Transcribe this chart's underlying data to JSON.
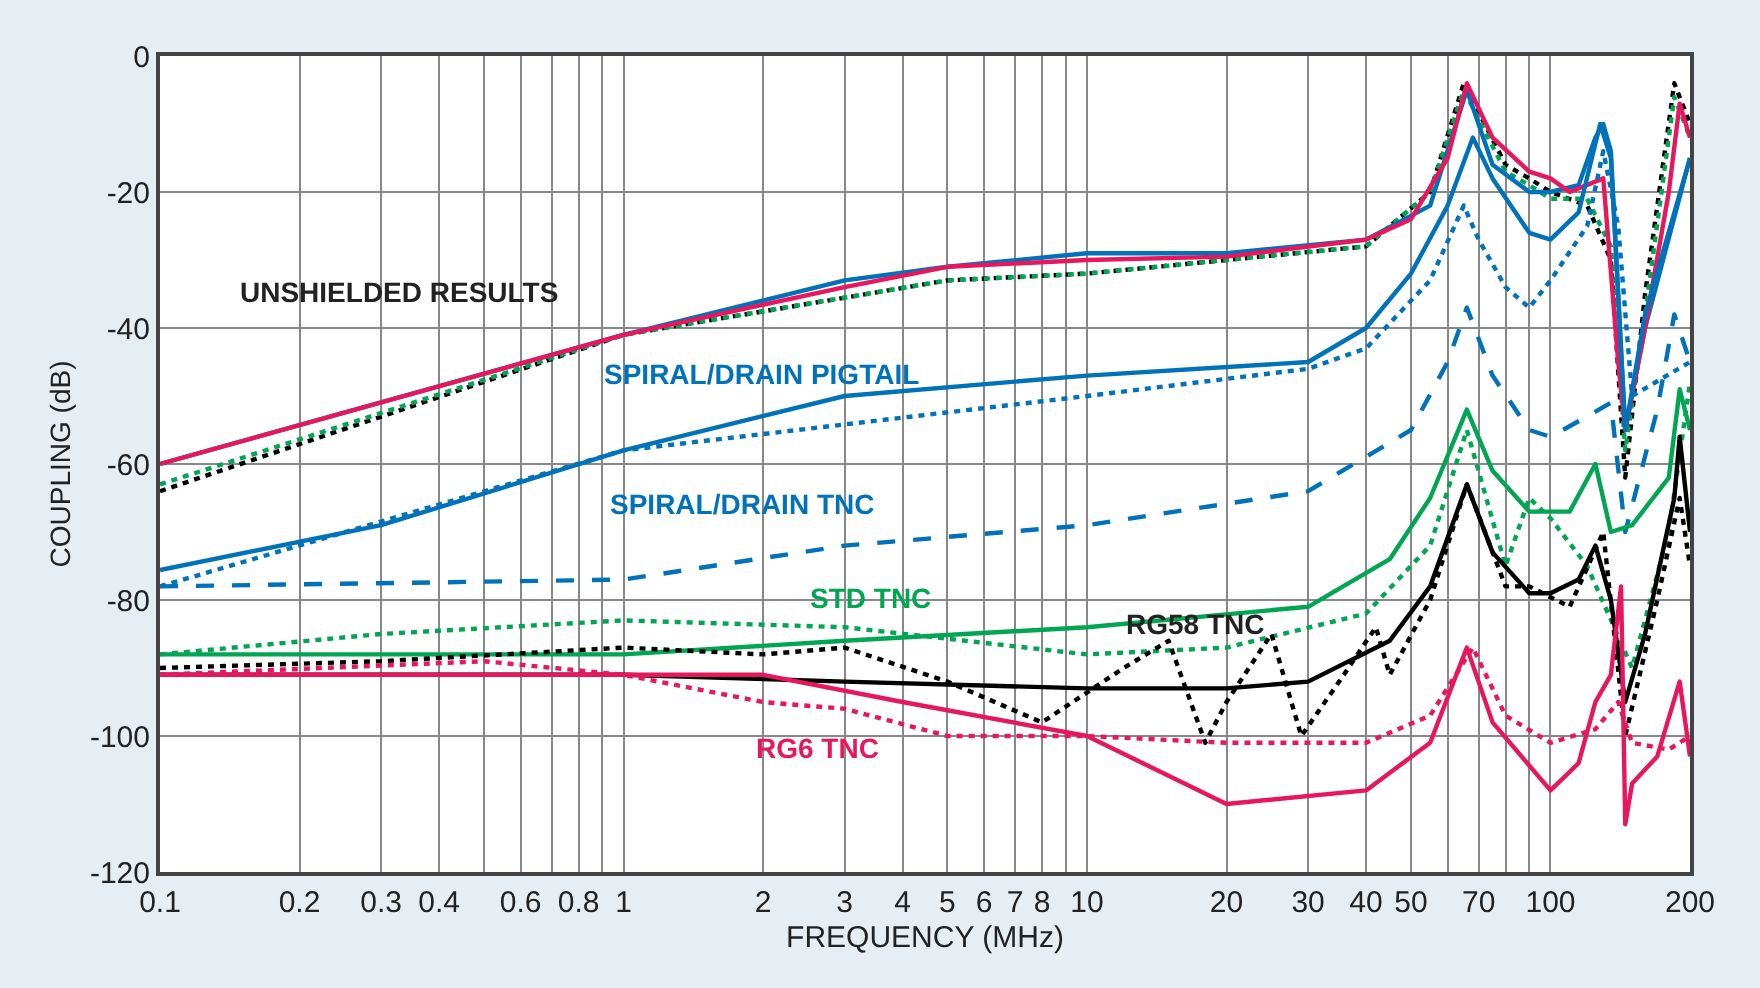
{
  "chart_data": {
    "type": "line",
    "xlabel": "FREQUENCY (MHz)",
    "ylabel": "COUPLING (dB)",
    "log": "x",
    "grid": true,
    "marker": "none",
    "xlim": [
      0.1,
      200
    ],
    "xticks": [
      0.1,
      0.2,
      0.3,
      0.4,
      {
        "value": 0.5,
        "label": null
      },
      0.6,
      {
        "value": 0.7,
        "label": null
      },
      0.8,
      {
        "value": 0.9,
        "label": null
      },
      1,
      2,
      3,
      4,
      5,
      6,
      7,
      8,
      {
        "value": 9,
        "label": null
      },
      10,
      20,
      30,
      40,
      50,
      {
        "value": 60,
        "label": null
      },
      70,
      {
        "value": 80,
        "label": null
      },
      {
        "value": 90,
        "label": null
      },
      100,
      200
    ],
    "ylim": [
      -120,
      0
    ],
    "yticks": [
      -120,
      -100,
      -80,
      -60,
      -40,
      -20,
      0
    ],
    "annotations": [
      "UNSHIELDED RESULTS",
      "SPIRAL/DRAIN PIGTAIL",
      "SPIRAL/DRAIN TNC",
      "STD TNC",
      "RG58 TNC",
      "RG6 TNC"
    ],
    "series": [
      {
        "color": "#000000",
        "line_style": "dotted",
        "x": [
          0.1,
          1,
          5,
          10,
          20,
          40,
          55,
          65,
          80,
          90,
          100,
          120,
          135,
          145,
          160,
          185,
          200
        ],
        "values": [
          -64,
          -41,
          -33,
          -32,
          -30,
          -28,
          -20,
          -4,
          -16,
          -18,
          -20,
          -22,
          -30,
          -62,
          -35,
          -4,
          -10
        ]
      },
      {
        "color": "#00a651",
        "line_style": "dotted",
        "x": [
          0.1,
          1,
          5,
          10,
          20,
          40,
          55,
          65,
          80,
          90,
          100,
          120,
          135,
          145,
          160,
          185,
          200
        ],
        "values": [
          -63,
          -41,
          -33,
          -32,
          -30,
          -28,
          -20,
          -5,
          -17,
          -19,
          -21,
          -21,
          -28,
          -58,
          -38,
          -6,
          -12
        ]
      },
      {
        "color": "#0072bc",
        "line_style": "solid",
        "x": [
          0.1,
          1,
          3,
          5,
          10,
          20,
          40,
          55,
          66,
          75,
          90,
          100,
          115,
          125,
          130,
          135,
          145,
          160,
          200
        ],
        "values": [
          -60,
          -41,
          -33,
          -31,
          -29,
          -29,
          -27,
          -22,
          -5,
          -16,
          -20,
          -20,
          -19,
          -12,
          -10,
          -14,
          -55,
          -40,
          -15
        ]
      },
      {
        "color": "#e8175d",
        "line_style": "solid",
        "x": [
          0.1,
          1,
          3,
          5,
          10,
          20,
          40,
          50,
          60,
          66,
          75,
          90,
          100,
          110,
          130,
          140,
          145,
          160,
          180,
          190,
          200
        ],
        "values": [
          -60,
          -41,
          -34,
          -31,
          -30,
          -29.5,
          -27,
          -24,
          -15,
          -4,
          -12,
          -17,
          -18,
          -20,
          -18,
          -45,
          -55,
          -40,
          -20,
          -7,
          -12
        ]
      },
      {
        "color": "#0072bc",
        "line_style": "dotted",
        "x": [
          0.1,
          1,
          10,
          30,
          40,
          55,
          65,
          70,
          80,
          90,
          100,
          120,
          130,
          140,
          150,
          200
        ],
        "values": [
          -78,
          -58,
          -50,
          -46,
          -43,
          -33,
          -22,
          -27,
          -34,
          -37,
          -33,
          -25,
          -14,
          -25,
          -50,
          -45
        ]
      },
      {
        "color": "#0072bc",
        "line_style": "solid",
        "x": [
          0.1,
          0.3,
          1,
          3,
          10,
          30,
          40,
          50,
          60,
          68,
          75,
          90,
          100,
          115,
          128,
          135,
          145,
          160,
          200
        ],
        "values": [
          -75.6,
          -69,
          -58,
          -50,
          -47,
          -45,
          -40,
          -32,
          -22,
          -12,
          -18,
          -26,
          -27,
          -23,
          -10,
          -15,
          -55,
          -38,
          -15
        ]
      },
      {
        "color": "#0072bc",
        "line_style": "dashed",
        "x": [
          0.1,
          1,
          3,
          10,
          30,
          50,
          60,
          66,
          75,
          90,
          100,
          120,
          135,
          145,
          170,
          185,
          200
        ],
        "values": [
          -78,
          -77,
          -72,
          -69,
          -64,
          -55,
          -45,
          -37,
          -47,
          -55,
          -56,
          -53,
          -51,
          -70,
          -52,
          -38,
          -45
        ]
      },
      {
        "color": "#00a651",
        "line_style": "dotted",
        "x": [
          0.1,
          0.3,
          1,
          3,
          10,
          20,
          40,
          55,
          66,
          80,
          90,
          100,
          120,
          150,
          180,
          200
        ],
        "values": [
          -88,
          -85,
          -83,
          -84,
          -88,
          -87,
          -82,
          -72,
          -55,
          -75,
          -65,
          -68,
          -75,
          -90,
          -70,
          -48
        ]
      },
      {
        "color": "#00a651",
        "line_style": "solid",
        "x": [
          0.1,
          1,
          3,
          10,
          30,
          45,
          55,
          66,
          75,
          90,
          110,
          125,
          135,
          150,
          180,
          190,
          200
        ],
        "values": [
          -88,
          -88,
          -86,
          -84,
          -81,
          -74,
          -65,
          -52,
          -61,
          -67,
          -67,
          -60,
          -70,
          -69,
          -62,
          -49,
          -55
        ]
      },
      {
        "color": "#000000",
        "line_style": "dotted",
        "x": [
          0.1,
          0.3,
          1,
          2,
          3,
          5,
          8,
          12,
          15,
          18,
          20,
          25,
          29,
          35,
          42,
          45,
          55,
          66,
          80,
          90,
          110,
          130,
          145,
          170,
          190,
          200
        ],
        "values": [
          -90,
          -89,
          -87,
          -88,
          -87,
          -92,
          -98,
          -90,
          -86,
          -101,
          -95,
          -85,
          -100,
          -92,
          -84,
          -91,
          -80,
          -63,
          -78,
          -78,
          -81,
          -70,
          -100,
          -80,
          -65,
          -75
        ]
      },
      {
        "color": "#000000",
        "line_style": "solid",
        "x": [
          0.1,
          1,
          3,
          10,
          20,
          30,
          45,
          55,
          66,
          75,
          90,
          100,
          115,
          125,
          135,
          145,
          160,
          185,
          190,
          200
        ],
        "values": [
          -91,
          -91,
          -92,
          -93,
          -93,
          -92,
          -86,
          -78,
          -63,
          -73,
          -79,
          -79,
          -77,
          -72,
          -80,
          -95,
          -85,
          -65,
          -56,
          -70
        ]
      },
      {
        "color": "#e8175d",
        "line_style": "dotted",
        "x": [
          0.1,
          0.5,
          1,
          2,
          3,
          5,
          10,
          20,
          40,
          55,
          68,
          80,
          100,
          125,
          140,
          150,
          180,
          200
        ],
        "values": [
          -91,
          -89,
          -91,
          -95,
          -96,
          -100,
          -100,
          -101,
          -101,
          -97,
          -87,
          -97,
          -101,
          -99,
          -95,
          -101,
          -102,
          -100
        ]
      },
      {
        "color": "#e8175d",
        "line_style": "solid",
        "x": [
          0.1,
          1,
          2,
          4,
          10,
          20,
          40,
          55,
          66,
          75,
          100,
          115,
          125,
          135,
          142,
          145,
          150,
          170,
          190,
          200
        ],
        "values": [
          -91,
          -91,
          -91,
          -95,
          -100,
          -110,
          -108,
          -101,
          -87,
          -98,
          -108,
          -104,
          -95,
          -91,
          -78,
          -113,
          -107,
          -103,
          -92,
          -103
        ]
      }
    ]
  }
}
